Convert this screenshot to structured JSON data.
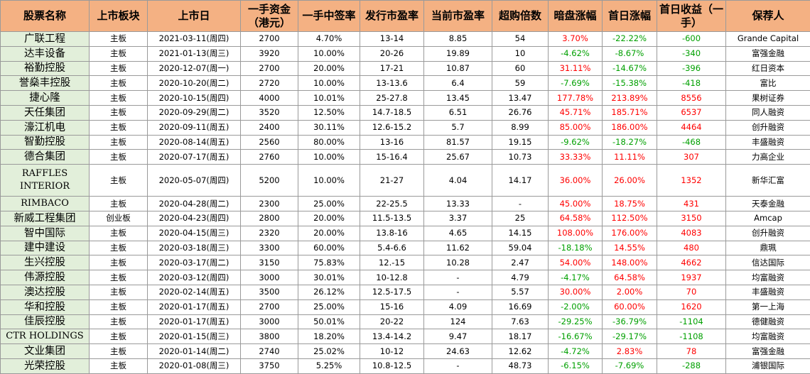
{
  "headers": {
    "name": "股票名称",
    "board": "上市板块",
    "date": "上市日",
    "lot_cost": "一手资金（港元）",
    "win_rate": "一手中签率",
    "issue_pe": "发行市盈率",
    "current_pe": "当前市盈率",
    "oversub": "超购倍数",
    "grey": "暗盘涨幅",
    "first_day": "首日涨幅",
    "return": "首日收益（一手）",
    "sponsor": "保荐人"
  },
  "rows": [
    {
      "name": "广联工程",
      "board": "主板",
      "date": "2021-03-11(周四)",
      "lot_cost": "2700",
      "win_rate": "4.70%",
      "issue_pe": "13-14",
      "current_pe": "8.85",
      "oversub": "54",
      "grey": "3.70%",
      "first_day": "-22.22%",
      "return": "-600",
      "sponsor": "Grande Capital"
    },
    {
      "name": "达丰设备",
      "board": "主板",
      "date": "2021-01-13(周三)",
      "lot_cost": "3920",
      "win_rate": "10.00%",
      "issue_pe": "20-26",
      "current_pe": "19.89",
      "oversub": "10",
      "grey": "-4.62%",
      "first_day": "-8.67%",
      "return": "-340",
      "sponsor": "富强金融"
    },
    {
      "name": "裕勤控股",
      "board": "主板",
      "date": "2020-12-07(周一)",
      "lot_cost": "2700",
      "win_rate": "20.00%",
      "issue_pe": "17-21",
      "current_pe": "10.87",
      "oversub": "60",
      "grey": "31.11%",
      "first_day": "-14.67%",
      "return": "-396",
      "sponsor": "红日资本"
    },
    {
      "name": "誉燊丰控股",
      "board": "主板",
      "date": "2020-10-20(周二)",
      "lot_cost": "2720",
      "win_rate": "10.00%",
      "issue_pe": "13-13.6",
      "current_pe": "6.4",
      "oversub": "59",
      "grey": "-7.69%",
      "first_day": "-15.38%",
      "return": "-418",
      "sponsor": "富比"
    },
    {
      "name": "捷心隆",
      "board": "主板",
      "date": "2020-10-15(周四)",
      "lot_cost": "4000",
      "win_rate": "10.01%",
      "issue_pe": "25-27.8",
      "current_pe": "13.45",
      "oversub": "13.47",
      "grey": "177.78%",
      "first_day": "213.89%",
      "return": "8556",
      "sponsor": "果树证券"
    },
    {
      "name": "天任集团",
      "board": "主板",
      "date": "2020-09-29(周二)",
      "lot_cost": "3520",
      "win_rate": "12.50%",
      "issue_pe": "14.7-18.5",
      "current_pe": "6.51",
      "oversub": "26.76",
      "grey": "45.71%",
      "first_day": "185.71%",
      "return": "6537",
      "sponsor": "同人融资"
    },
    {
      "name": "濠江机电",
      "board": "主板",
      "date": "2020-09-11(周五)",
      "lot_cost": "2400",
      "win_rate": "30.11%",
      "issue_pe": "12.6-15.2",
      "current_pe": "5.7",
      "oversub": "8.99",
      "grey": "85.00%",
      "first_day": "186.00%",
      "return": "4464",
      "sponsor": "创升融资"
    },
    {
      "name": "智勤控股",
      "board": "主板",
      "date": "2020-08-14(周五)",
      "lot_cost": "2560",
      "win_rate": "80.00%",
      "issue_pe": "13-16",
      "current_pe": "81.57",
      "oversub": "19.15",
      "grey": "-9.62%",
      "first_day": "-18.27%",
      "return": "-468",
      "sponsor": "丰盛融资"
    },
    {
      "name": "德合集团",
      "board": "主板",
      "date": "2020-07-17(周五)",
      "lot_cost": "2760",
      "win_rate": "10.00%",
      "issue_pe": "15-16.4",
      "current_pe": "25.67",
      "oversub": "10.73",
      "grey": "33.33%",
      "first_day": "11.11%",
      "return": "307",
      "sponsor": "力高企业"
    },
    {
      "name": "RAFFLES INTERIOR",
      "board": "主板",
      "date": "2020-05-07(周四)",
      "lot_cost": "5200",
      "win_rate": "10.00%",
      "issue_pe": "21-27",
      "current_pe": "4.04",
      "oversub": "14.17",
      "grey": "36.00%",
      "first_day": "26.00%",
      "return": "1352",
      "sponsor": "新华汇富"
    },
    {
      "name": "RIMBACO",
      "board": "主板",
      "date": "2020-04-28(周二)",
      "lot_cost": "2300",
      "win_rate": "25.00%",
      "issue_pe": "22-25.5",
      "current_pe": "13.33",
      "oversub": "-",
      "grey": "45.00%",
      "first_day": "18.75%",
      "return": "431",
      "sponsor": "天泰金融"
    },
    {
      "name": "新威工程集团",
      "board": "创业板",
      "date": "2020-04-23(周四)",
      "lot_cost": "2800",
      "win_rate": "20.00%",
      "issue_pe": "11.5-13.5",
      "current_pe": "3.37",
      "oversub": "25",
      "grey": "64.58%",
      "first_day": "112.50%",
      "return": "3150",
      "sponsor": "Amcap"
    },
    {
      "name": "智中国际",
      "board": "主板",
      "date": "2020-04-15(周三)",
      "lot_cost": "2320",
      "win_rate": "20.00%",
      "issue_pe": "13.8-16",
      "current_pe": "4.65",
      "oversub": "14.15",
      "grey": "108.00%",
      "first_day": "176.00%",
      "return": "4083",
      "sponsor": "创升融资"
    },
    {
      "name": "建中建设",
      "board": "主板",
      "date": "2020-03-18(周三)",
      "lot_cost": "3300",
      "win_rate": "60.00%",
      "issue_pe": "5.4-6.6",
      "current_pe": "11.62",
      "oversub": "59.04",
      "grey": "-18.18%",
      "first_day": "14.55%",
      "return": "480",
      "sponsor": "鼎珮"
    },
    {
      "name": "生兴控股",
      "board": "主板",
      "date": "2020-03-17(周二)",
      "lot_cost": "3150",
      "win_rate": "75.83%",
      "issue_pe": "12.-15",
      "current_pe": "10.28",
      "oversub": "2.47",
      "grey": "54.00%",
      "first_day": "148.00%",
      "return": "4662",
      "sponsor": "信达国际"
    },
    {
      "name": "伟源控股",
      "board": "主板",
      "date": "2020-03-12(周四)",
      "lot_cost": "3000",
      "win_rate": "30.01%",
      "issue_pe": "10-12.8",
      "current_pe": "-",
      "oversub": "4.79",
      "grey": "-4.17%",
      "first_day": "64.58%",
      "return": "1937",
      "sponsor": "均富融资"
    },
    {
      "name": "澳达控股",
      "board": "主板",
      "date": "2020-02-14(周五)",
      "lot_cost": "3500",
      "win_rate": "26.12%",
      "issue_pe": "12.5-17.5",
      "current_pe": "-",
      "oversub": "5.57",
      "grey": "30.00%",
      "first_day": "2.00%",
      "return": "70",
      "sponsor": "丰盛融资"
    },
    {
      "name": "华和控股",
      "board": "主板",
      "date": "2020-01-17(周五)",
      "lot_cost": "2700",
      "win_rate": "25.00%",
      "issue_pe": "15-16",
      "current_pe": "4.09",
      "oversub": "16.69",
      "grey": "-2.00%",
      "first_day": "60.00%",
      "return": "1620",
      "sponsor": "第一上海"
    },
    {
      "name": "佳辰控股",
      "board": "主板",
      "date": "2020-01-17(周五)",
      "lot_cost": "3000",
      "win_rate": "50.01%",
      "issue_pe": "20-22",
      "current_pe": "124",
      "oversub": "7.63",
      "grey": "-29.25%",
      "first_day": "-36.79%",
      "return": "-1104",
      "sponsor": "德健融资"
    },
    {
      "name": "CTR HOLDINGS",
      "board": "主板",
      "date": "2020-01-15(周三)",
      "lot_cost": "3800",
      "win_rate": "18.20%",
      "issue_pe": "13.4-14.2",
      "current_pe": "9.47",
      "oversub": "18.17",
      "grey": "-16.67%",
      "first_day": "-29.17%",
      "return": "-1108",
      "sponsor": "均富融资"
    },
    {
      "name": "文业集团",
      "board": "主板",
      "date": "2020-01-14(周二)",
      "lot_cost": "2740",
      "win_rate": "25.02%",
      "issue_pe": "10-12",
      "current_pe": "24.63",
      "oversub": "12.62",
      "grey": "-4.72%",
      "first_day": "2.83%",
      "return": "78",
      "sponsor": "富强金融"
    },
    {
      "name": "光荣控股",
      "board": "主板",
      "date": "2020-01-08(周三)",
      "lot_cost": "3750",
      "win_rate": "5.25%",
      "issue_pe": "10.8-12.5",
      "current_pe": "-",
      "oversub": "48.73",
      "grey": "-6.15%",
      "first_day": "-7.69%",
      "return": "-288",
      "sponsor": "浦银国际"
    }
  ]
}
